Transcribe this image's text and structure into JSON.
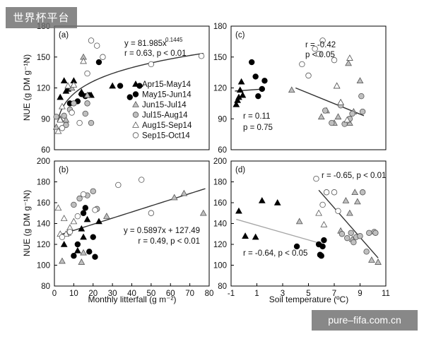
{
  "watermarks": {
    "top_left": "世界杯平台",
    "bottom_right": "pure–fifa.com.cn"
  },
  "legend": [
    {
      "label": "Apr15-May14",
      "marker": "triangle",
      "fill": "#000000"
    },
    {
      "label": "May15-Jun14",
      "marker": "circle",
      "fill": "#000000"
    },
    {
      "label": "Jun15-Jul14",
      "marker": "triangle",
      "fill": "#bfbfbf"
    },
    {
      "label": "Jul15-Aug14",
      "marker": "circle",
      "fill": "#bfbfbf"
    },
    {
      "label": "Aug15-Sep14",
      "marker": "triangle",
      "fill": "#ffffff"
    },
    {
      "label": "Sep15-Oct14",
      "marker": "circle",
      "fill": "#ffffff"
    }
  ],
  "shared_labels": {
    "ylabel": "NUE (g DM g⁻¹N)",
    "xlabel_left": "Monthly litterfall (g m⁻²)",
    "xlabel_right": "Soil temperature (ºC)"
  },
  "chart_data": [
    {
      "id": "a",
      "panel_label": "(a)",
      "type": "scatter",
      "xlim": [
        0,
        80
      ],
      "ylim": [
        60,
        180
      ],
      "yticks": [
        "60",
        "90",
        "120",
        "150",
        "180"
      ],
      "annotations": [
        "y = 81.985x",
        "0.1445",
        "r = 0.63, p < 0.01"
      ],
      "fit": {
        "kind": "power",
        "a": 81.985,
        "b": 0.1445,
        "x_from": 2,
        "x_to": 77,
        "color": "#333333"
      },
      "series": [
        {
          "name": "Apr15-May14",
          "x": [
            3,
            5,
            6,
            7,
            10,
            14,
            19,
            30
          ],
          "y": [
            111,
            127,
            117,
            119,
            127,
            116,
            113,
            122
          ]
        },
        {
          "name": "May15-Jun14",
          "x": [
            8,
            12,
            14,
            16,
            18,
            23,
            34,
            39,
            44
          ],
          "y": [
            105,
            107,
            114,
            112,
            113,
            145,
            122,
            111,
            122
          ]
        },
        {
          "name": "Jun15-Jul14",
          "x": [
            1,
            3,
            6,
            9,
            15,
            17
          ],
          "y": [
            82,
            90,
            89,
            120,
            150,
            113
          ]
        },
        {
          "name": "Jul15-Aug14",
          "x": [
            1,
            5,
            6,
            8,
            10,
            16,
            17,
            19
          ],
          "y": [
            92,
            93,
            84,
            99,
            105,
            95,
            105,
            86
          ]
        },
        {
          "name": "Aug15-Sep14",
          "x": [
            2,
            3,
            4,
            7,
            10,
            15
          ],
          "y": [
            78,
            89,
            102,
            122,
            123,
            146
          ]
        },
        {
          "name": "Sep15-Oct14",
          "x": [
            4,
            9,
            13,
            17,
            19,
            22,
            25,
            50,
            76
          ],
          "y": [
            81,
            96,
            86,
            134,
            166,
            161,
            150,
            143,
            151
          ]
        }
      ]
    },
    {
      "id": "c",
      "panel_label": "(c)",
      "type": "scatter",
      "xlim": [
        -1,
        11
      ],
      "ylim": [
        60,
        180
      ],
      "yticks": [
        "60",
        "90",
        "120",
        "150",
        "180"
      ],
      "annotations": [
        "r = -0.42",
        "p < 0.05",
        "r = 0.11",
        "p = 0.75"
      ],
      "fits": [
        {
          "x_from": -0.7,
          "x_to": 1.6,
          "y_from": 117,
          "y_to": 119,
          "color": "#333333"
        },
        {
          "x_from": 4.0,
          "x_to": 9.3,
          "y_from": 120,
          "y_to": 93,
          "color": "#333333"
        }
      ],
      "series": [
        {
          "name": "Apr15-May14",
          "x": [
            -0.6,
            -0.5,
            -0.4,
            -0.3,
            -0.2,
            -0.1
          ],
          "y": [
            104,
            108,
            111,
            118,
            126,
            113
          ]
        },
        {
          "name": "May15-Jun14",
          "x": [
            0.6,
            0.9,
            1.1,
            1.4,
            1.6
          ],
          "y": [
            145,
            131,
            112,
            119,
            127
          ]
        },
        {
          "name": "Jun15-Jul14",
          "x": [
            3.7,
            6.0,
            6.4,
            7.0,
            7.2,
            7.3,
            7.5,
            8.1,
            8.2,
            8.5,
            9.0
          ],
          "y": [
            118,
            92,
            98,
            86,
            122,
            92,
            106,
            144,
            86,
            97,
            127
          ]
        },
        {
          "name": "Jul15-Aug14",
          "x": [
            6.3,
            6.8,
            7.5,
            7.8,
            8.2,
            8.4,
            9.1,
            9.2
          ],
          "y": [
            98,
            86,
            103,
            85,
            90,
            95,
            112,
            97
          ]
        },
        {
          "name": "Aug15-Sep14",
          "x": [
            7.2,
            7.5,
            8.0,
            8.2
          ],
          "y": [
            122,
            106,
            89,
            149
          ]
        },
        {
          "name": "Sep15-Oct14",
          "x": [
            4.5,
            5.0,
            5.5,
            5.8,
            6.1,
            7.0
          ],
          "y": [
            143,
            132,
            158,
            153,
            166,
            147
          ]
        }
      ]
    },
    {
      "id": "b",
      "panel_label": "(b)",
      "type": "scatter",
      "xlim": [
        0,
        80
      ],
      "ylim": [
        80,
        200
      ],
      "yticks": [
        "80",
        "100",
        "120",
        "140",
        "160",
        "180",
        "200"
      ],
      "xticks": [
        "0",
        "10",
        "20",
        "30",
        "40",
        "50",
        "60",
        "70",
        "80"
      ],
      "annotations": [
        "y = 0.5897x + 127.49",
        "r = 0.49, p < 0.01"
      ],
      "fit": {
        "kind": "linear",
        "m": 0.5897,
        "c": 127.49,
        "x_from": 2,
        "x_to": 78,
        "color": "#333333"
      },
      "series": [
        {
          "name": "Apr15-May14",
          "x": [
            5,
            12,
            14,
            15,
            17,
            23
          ],
          "y": [
            120,
            114,
            135,
            127,
            144,
            142
          ]
        },
        {
          "name": "May15-Jun14",
          "x": [
            10,
            12,
            15,
            16,
            18,
            20,
            21
          ],
          "y": [
            109,
            120,
            150,
            155,
            113,
            127,
            108
          ]
        },
        {
          "name": "Jun15-Jul14",
          "x": [
            4,
            7,
            14,
            15,
            27,
            62,
            67,
            77
          ],
          "y": [
            104,
            131,
            103,
            112,
            147,
            165,
            169,
            150
          ]
        },
        {
          "name": "Jul15-Aug14",
          "x": [
            10,
            13,
            17,
            20,
            22
          ],
          "y": [
            158,
            164,
            167,
            171,
            154
          ]
        },
        {
          "name": "Aug15-Sep14",
          "x": [
            2,
            3,
            5,
            6,
            8,
            10
          ],
          "y": [
            155,
            130,
            145,
            130,
            136,
            142
          ]
        },
        {
          "name": "Sep15-Oct14",
          "x": [
            4,
            8,
            12,
            15,
            21,
            33,
            45,
            50
          ],
          "y": [
            127,
            132,
            147,
            168,
            153,
            177,
            182,
            150
          ]
        }
      ]
    },
    {
      "id": "d",
      "panel_label": "(d)",
      "type": "scatter",
      "xlim": [
        -1,
        11
      ],
      "ylim": [
        80,
        200
      ],
      "yticks": [
        "80",
        "100",
        "120",
        "140",
        "160",
        "180",
        "200"
      ],
      "xticks": [
        "-1",
        "1",
        "3",
        "5",
        "7",
        "9",
        "11"
      ],
      "annotations": [
        "r = -0.65, p < 0.01",
        "r = -0.64, p < 0.05"
      ],
      "fits": [
        {
          "x_from": -0.6,
          "x_to": 6.2,
          "y_from": 144,
          "y_to": 120,
          "color": "#a6a6a6"
        },
        {
          "x_from": 5.8,
          "x_to": 10.4,
          "y_from": 172,
          "y_to": 107,
          "color": "#333333"
        }
      ],
      "series": [
        {
          "name": "Apr15-May14",
          "x": [
            -0.4,
            0.1,
            0.9,
            1.4,
            2.6
          ],
          "y": [
            152,
            128,
            127,
            162,
            160
          ]
        },
        {
          "name": "May15-Jun14",
          "x": [
            4.1,
            5.8,
            5.9,
            6.0,
            6.1,
            6.2
          ],
          "y": [
            118,
            120,
            110,
            109,
            118,
            124
          ]
        },
        {
          "name": "Jun15-Jul14",
          "x": [
            4.3,
            7.5,
            7.9,
            8.2,
            8.4,
            8.6,
            8.8,
            9.9,
            10.4
          ],
          "y": [
            142,
            133,
            162,
            150,
            125,
            170,
            161,
            105,
            103
          ]
        },
        {
          "name": "Jul15-Aug14",
          "x": [
            7.6,
            8.0,
            8.3,
            8.5,
            8.7,
            9.0,
            9.2,
            9.5,
            9.7,
            10.1,
            10.2
          ],
          "y": [
            130,
            126,
            131,
            122,
            127,
            128,
            170,
            113,
            131,
            132,
            131
          ]
        },
        {
          "name": "Aug15-Sep14",
          "x": [
            5.8,
            6.2
          ],
          "y": [
            150,
            139
          ]
        },
        {
          "name": "Sep15-Oct14",
          "x": [
            5.6,
            6.1,
            6.4,
            7.0,
            7.3
          ],
          "y": [
            183,
            158,
            170,
            170,
            152
          ]
        }
      ]
    }
  ]
}
